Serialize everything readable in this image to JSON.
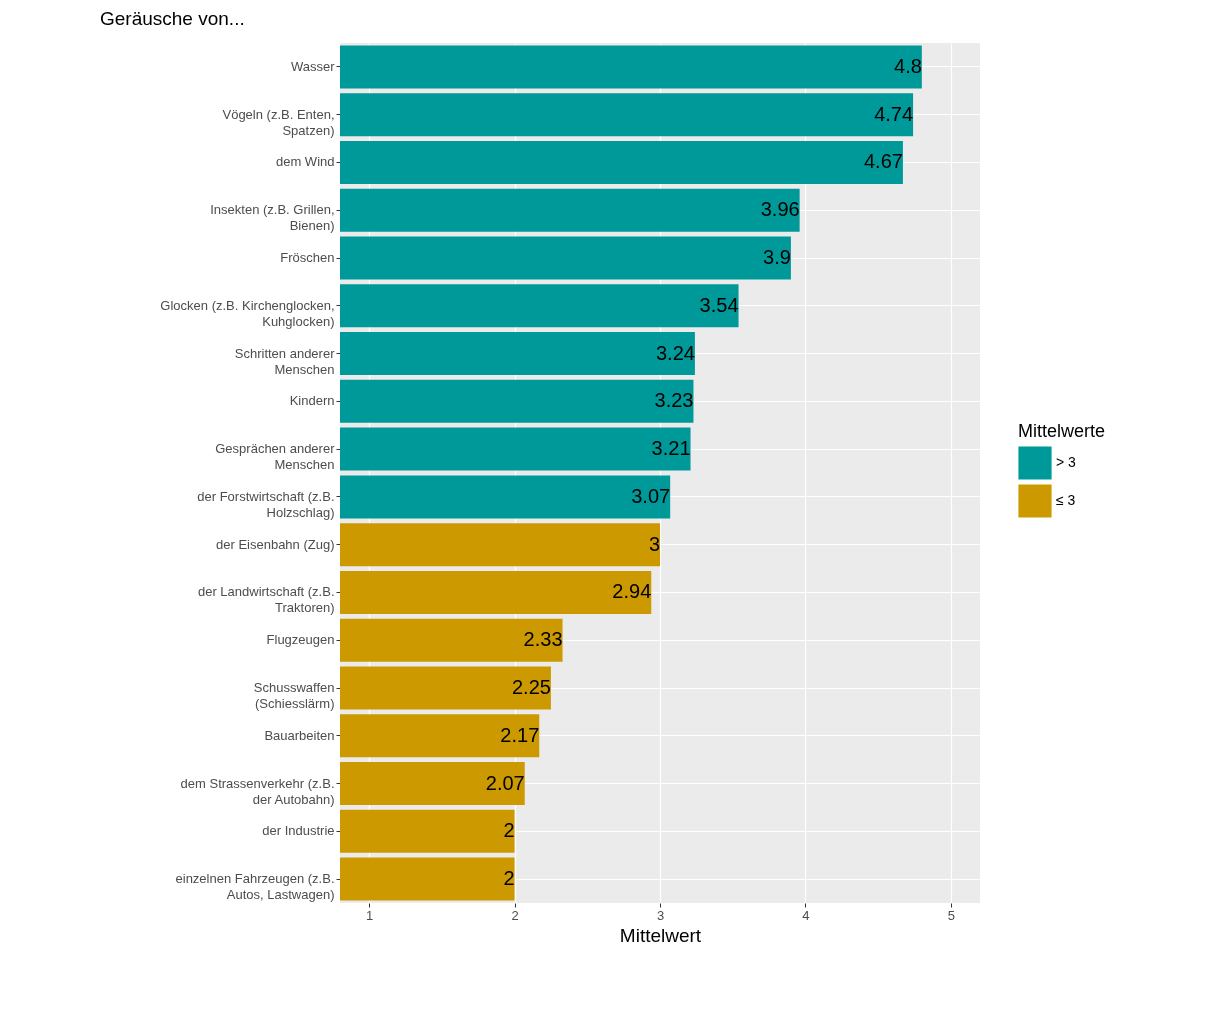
{
  "chart_data": {
    "type": "bar",
    "orientation": "horizontal",
    "title": "Geräusche von...",
    "xlabel": "Mittelwert",
    "legend_title": "Mittelwerte",
    "categories": [
      "Wasser",
      "Vögeln (z.B. Enten,\nSpatzen)",
      "dem Wind",
      "Insekten (z.B. Grillen,\nBienen)",
      "Fröschen",
      "Glocken (z.B. Kirchenglocken,\nKuhglocken)",
      "Schritten anderer\nMenschen",
      "Kindern",
      "Gesprächen anderer\nMenschen",
      "der Forstwirtschaft (z.B.\nHolzschlag)",
      "der Eisenbahn (Zug)",
      "der Landwirtschaft (z.B.\nTraktoren)",
      "Flugzeugen",
      "Schusswaffen\n(Schiesslärm)",
      "Bauarbeiten",
      "dem Strassenverkehr (z.B.\nder Autobahn)",
      "der Industrie",
      "einzelnen Fahrzeugen (z.B.\nAutos, Lastwagen)"
    ],
    "series": [
      {
        "name": "> 3",
        "color": "#009999",
        "values": [
          4.8,
          4.74,
          4.67,
          3.96,
          3.9,
          3.54,
          3.24,
          3.23,
          3.21,
          3.07,
          null,
          null,
          null,
          null,
          null,
          null,
          null,
          null
        ]
      },
      {
        "name": "≤ 3",
        "color": "#cc9900",
        "values": [
          null,
          null,
          null,
          null,
          null,
          null,
          null,
          null,
          null,
          null,
          3,
          2.94,
          2.33,
          2.25,
          2.17,
          2.07,
          2,
          2
        ]
      }
    ],
    "xlim": [
      0.8,
      5.2
    ],
    "xticks": [
      1,
      2,
      3,
      4,
      5
    ],
    "grid": true,
    "legend": "right",
    "data_labels": true
  }
}
